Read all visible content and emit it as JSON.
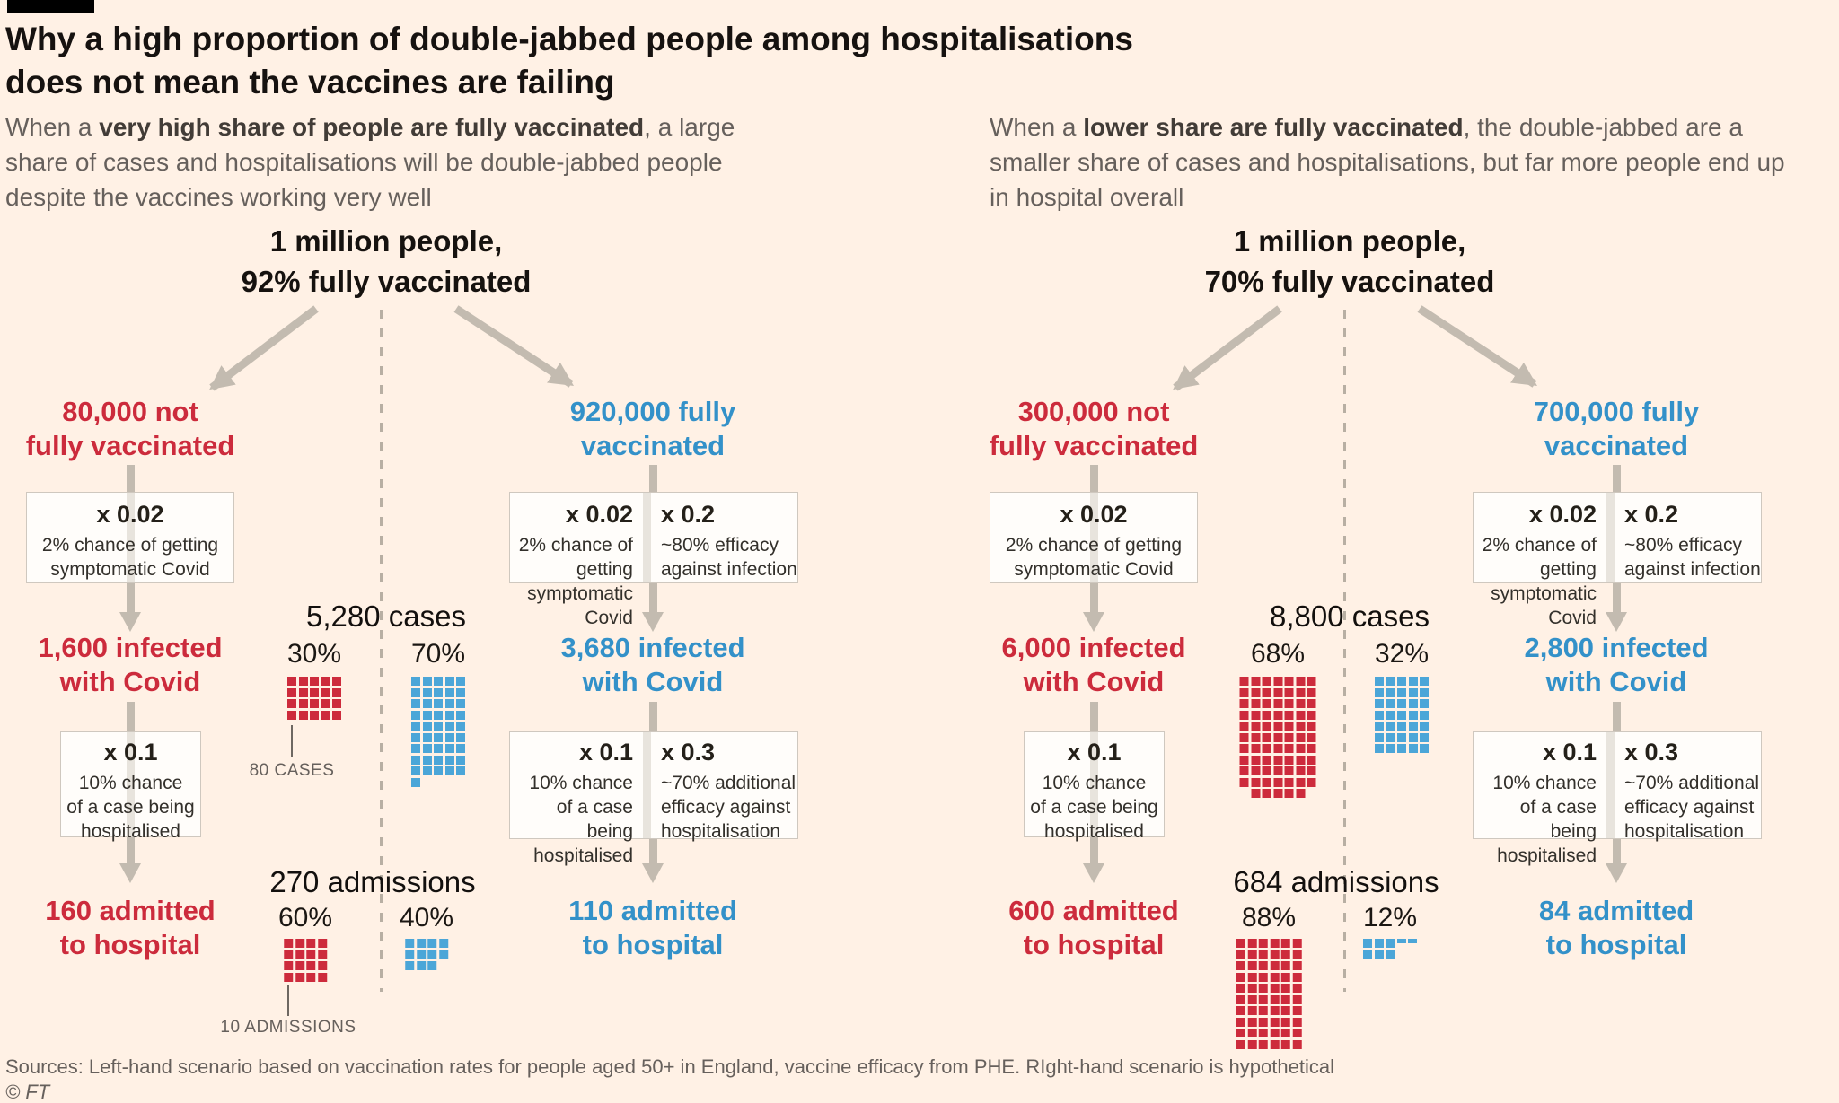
{
  "colors": {
    "background": "#fff1e5",
    "heading_black": "#161210",
    "text_grey": "#66605c",
    "red_text": "#cc2b3c",
    "blue_text": "#3391c9",
    "red_square": "#cd2b3c",
    "blue_square": "#4ba6d8",
    "arrow_grey": "#c3bbb0"
  },
  "header": {
    "title_line1": "Why a high proportion of double-jabbed people among hospitalisations",
    "title_line2": "does not mean the vaccines are failing"
  },
  "intro_left": {
    "pre": "When a ",
    "bold": "very high share of people are fully vaccinated",
    "post": ", a large share of cases and hospitalisations will be double-jabbed people despite the vaccines working very well"
  },
  "intro_right": {
    "pre": "When a ",
    "bold": "lower share are fully vaccinated",
    "post": ", the double-jabbed are a smaller share of cases and hospitalisations, but far more people end up in hospital overall"
  },
  "scenarios": [
    {
      "header_line1": "1 million people,",
      "header_line2": "92% fully vaccinated",
      "unvaccinated": {
        "line1": "80,000 not",
        "line2": "fully vaccinated",
        "box1": {
          "factor": "x 0.02",
          "d1": "2% chance of getting",
          "d2": "symptomatic Covid"
        },
        "infected_line1": "1,600 infected",
        "infected_line2": "with Covid",
        "box2": {
          "factor": "x 0.1",
          "d1": "10% chance",
          "d2": "of a case being",
          "d3": "hospitalised"
        },
        "admitted_line1": "160 admitted",
        "admitted_line2": "to hospital"
      },
      "vaccinated": {
        "line1": "920,000 fully",
        "line2": "vaccinated",
        "box1a": {
          "factor": "x 0.02",
          "d1": "2% chance of getting",
          "d2": "symptomatic Covid"
        },
        "box1b": {
          "factor": "x 0.2",
          "d1": "~80% efficacy",
          "d2": "against infection"
        },
        "infected_line1": "3,680 infected",
        "infected_line2": "with Covid",
        "box2a": {
          "factor": "x 0.1",
          "d1": "10% chance",
          "d2": "of a case being",
          "d3": "hospitalised"
        },
        "box2b": {
          "factor": "x 0.3",
          "d1": "~70% additional",
          "d2": "efficacy against",
          "d3": "hospitalisation"
        },
        "admitted_line1": "110 admitted",
        "admitted_line2": "to hospital"
      },
      "cases": {
        "title": "5,280 cases",
        "red_pct": "30%",
        "blue_pct": "70%",
        "red_waffle": {
          "units": 20,
          "cols": 5
        },
        "blue_waffle": {
          "units": 46,
          "cols": 5
        },
        "legend": "80 CASES"
      },
      "admissions": {
        "title": "270 admissions",
        "red_pct": "60%",
        "blue_pct": "40%",
        "red_waffle": {
          "units": 16,
          "cols": 4
        },
        "blue_waffle": {
          "units": 11,
          "cols": 4
        },
        "legend": "10 ADMISSIONS"
      }
    },
    {
      "header_line1": "1 million people,",
      "header_line2": "70% fully vaccinated",
      "unvaccinated": {
        "line1": "300,000 not",
        "line2": "fully vaccinated",
        "box1": {
          "factor": "x 0.02",
          "d1": "2% chance of getting",
          "d2": "symptomatic Covid"
        },
        "infected_line1": "6,000 infected",
        "infected_line2": "with Covid",
        "box2": {
          "factor": "x 0.1",
          "d1": "10% chance",
          "d2": "of a case being",
          "d3": "hospitalised"
        },
        "admitted_line1": "600 admitted",
        "admitted_line2": "to hospital"
      },
      "vaccinated": {
        "line1": "700,000 fully",
        "line2": "vaccinated",
        "box1a": {
          "factor": "x 0.02",
          "d1": "2% chance of getting",
          "d2": "symptomatic Covid"
        },
        "box1b": {
          "factor": "x 0.2",
          "d1": "~80% efficacy",
          "d2": "against infection"
        },
        "infected_line1": "2,800 infected",
        "infected_line2": "with Covid",
        "box2a": {
          "factor": "x 0.1",
          "d1": "10% chance",
          "d2": "of a case being",
          "d3": "hospitalised"
        },
        "box2b": {
          "factor": "x 0.3",
          "d1": "~70% additional",
          "d2": "efficacy against",
          "d3": "hospitalisation"
        },
        "admitted_line1": "84 admitted",
        "admitted_line2": "to hospital"
      },
      "cases": {
        "title": "8,800 cases",
        "red_pct": "68%",
        "blue_pct": "32%",
        "red_waffle": {
          "units": 75,
          "cols": 7,
          "last_row_offset": 1
        },
        "blue_waffle": {
          "units": 35,
          "cols": 5
        }
      },
      "admissions": {
        "title": "684 admissions",
        "red_pct": "88%",
        "blue_pct": "12%",
        "red_waffle": {
          "units": 60,
          "cols": 6
        },
        "blue_waffle": {
          "units": 8.4,
          "cols": 5,
          "rows_override": [
            [
              1,
              1,
              1,
              0.5,
              0.5
            ],
            [
              1,
              1,
              1
            ]
          ]
        }
      }
    }
  ],
  "footer": {
    "sources": "Sources: Left-hand scenario based on vaccination rates for people aged 50+ in England, vaccine efficacy from PHE. RIght-hand scenario is hypothetical",
    "copyright": "© FT"
  },
  "chart_data": [
    {
      "type": "waffle",
      "title": "5,280 cases",
      "unit_value": 80,
      "unit_label": "80 CASES",
      "series": [
        {
          "name": "not fully vaccinated",
          "share": "30%",
          "value": 1600,
          "squares": 20
        },
        {
          "name": "fully vaccinated",
          "share": "70%",
          "value": 3680,
          "squares": 46
        }
      ]
    },
    {
      "type": "waffle",
      "title": "270 admissions",
      "unit_value": 10,
      "unit_label": "10 ADMISSIONS",
      "series": [
        {
          "name": "not fully vaccinated",
          "share": "60%",
          "value": 160,
          "squares": 16
        },
        {
          "name": "fully vaccinated",
          "share": "40%",
          "value": 110,
          "squares": 11
        }
      ]
    },
    {
      "type": "waffle",
      "title": "8,800 cases",
      "unit_value": 80,
      "series": [
        {
          "name": "not fully vaccinated",
          "share": "68%",
          "value": 6000,
          "squares": 75
        },
        {
          "name": "fully vaccinated",
          "share": "32%",
          "value": 2800,
          "squares": 35
        }
      ]
    },
    {
      "type": "waffle",
      "title": "684 admissions",
      "unit_value": 10,
      "series": [
        {
          "name": "not fully vaccinated",
          "share": "88%",
          "value": 600,
          "squares": 60
        },
        {
          "name": "fully vaccinated",
          "share": "12%",
          "value": 84,
          "squares": 8.4
        }
      ]
    }
  ]
}
